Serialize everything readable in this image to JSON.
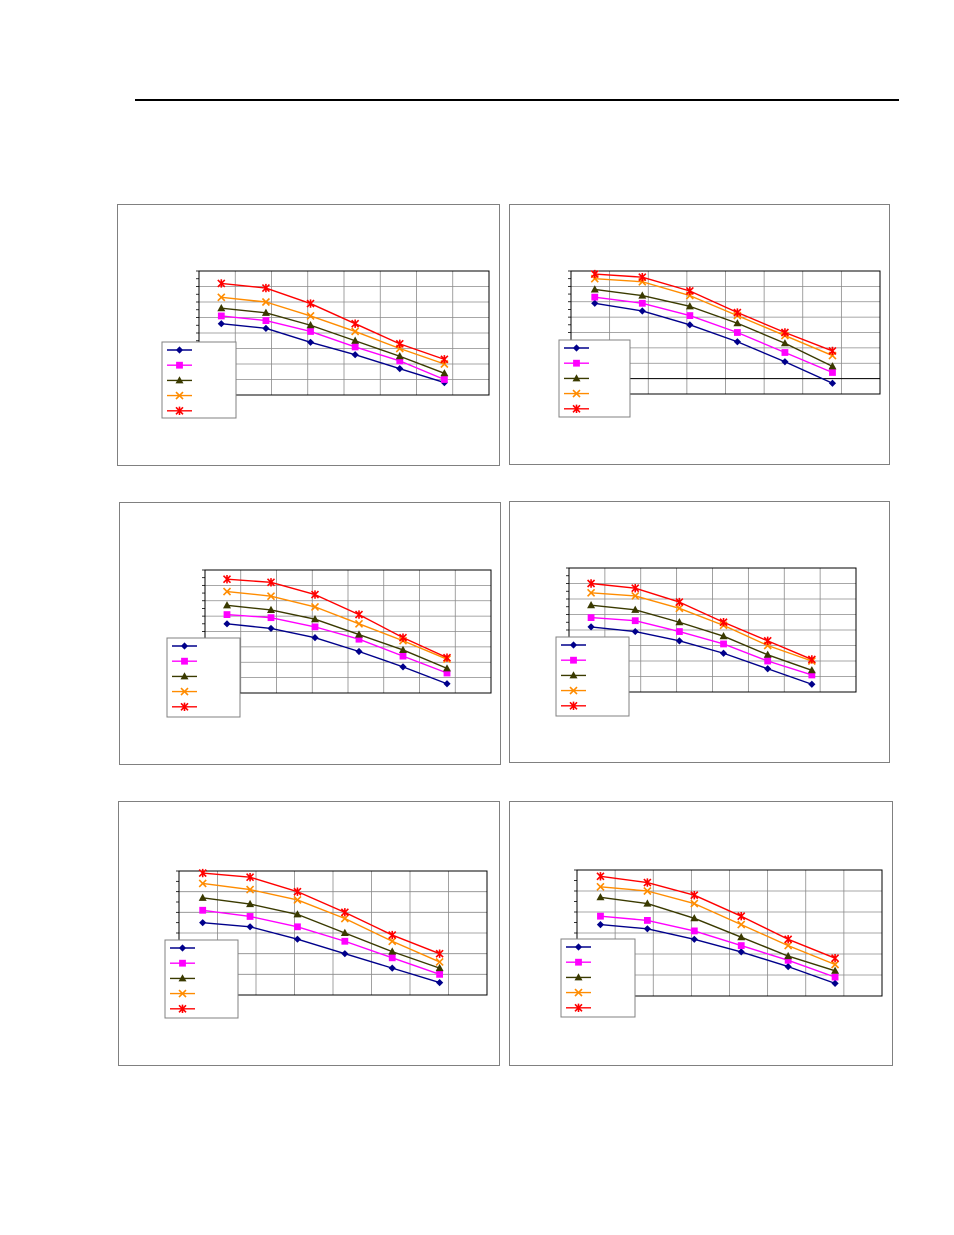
{
  "page": {},
  "series_style": [
    {
      "color": "#00008B",
      "marker": "diamond"
    },
    {
      "color": "#FF00FF",
      "marker": "square"
    },
    {
      "color": "#3A3A00",
      "marker": "triangle"
    },
    {
      "color": "#FF8C00",
      "marker": "x"
    },
    {
      "color": "#FF0000",
      "marker": "star"
    }
  ],
  "chart_data": [
    {
      "type": "line",
      "grid": true,
      "legend": "bottom-left",
      "x": [
        1,
        2,
        3,
        4,
        5,
        6
      ],
      "xlim": [
        0.5,
        7.0
      ],
      "ylim": [
        0,
        8
      ],
      "series": [
        {
          "values": [
            4.6,
            4.3,
            3.4,
            2.6,
            1.7,
            0.8
          ]
        },
        {
          "values": [
            5.1,
            4.8,
            4.1,
            3.1,
            2.2,
            1.0
          ]
        },
        {
          "values": [
            5.6,
            5.3,
            4.5,
            3.5,
            2.5,
            1.4
          ]
        },
        {
          "values": [
            6.3,
            6.0,
            5.1,
            4.1,
            3.0,
            2.0
          ]
        },
        {
          "values": [
            7.2,
            6.9,
            5.9,
            4.6,
            3.3,
            2.3
          ]
        }
      ]
    },
    {
      "type": "line",
      "grid": true,
      "legend": "bottom-left",
      "x": [
        1,
        2,
        3,
        4,
        5,
        6
      ],
      "xlim": [
        0.5,
        7.0
      ],
      "ylim": [
        -1,
        7
      ],
      "series": [
        {
          "values": [
            4.9,
            4.4,
            3.5,
            2.4,
            1.1,
            -0.3
          ]
        },
        {
          "values": [
            5.3,
            4.9,
            4.1,
            3.0,
            1.7,
            0.4
          ]
        },
        {
          "values": [
            5.8,
            5.4,
            4.7,
            3.6,
            2.3,
            0.8
          ]
        },
        {
          "values": [
            6.5,
            6.3,
            5.4,
            4.1,
            2.8,
            1.5
          ]
        },
        {
          "values": [
            6.8,
            6.6,
            5.7,
            4.3,
            3.0,
            1.8
          ]
        }
      ]
    },
    {
      "type": "line",
      "grid": true,
      "legend": "bottom-left",
      "x": [
        1,
        2,
        3,
        4,
        5,
        6
      ],
      "xlim": [
        0.5,
        7.0
      ],
      "ylim": [
        0,
        8
      ],
      "series": [
        {
          "values": [
            4.5,
            4.2,
            3.6,
            2.7,
            1.7,
            0.6
          ]
        },
        {
          "values": [
            5.1,
            4.9,
            4.3,
            3.5,
            2.4,
            1.3
          ]
        },
        {
          "values": [
            5.7,
            5.4,
            4.8,
            3.8,
            2.8,
            1.6
          ]
        },
        {
          "values": [
            6.6,
            6.3,
            5.6,
            4.5,
            3.4,
            2.2
          ]
        },
        {
          "values": [
            7.4,
            7.2,
            6.4,
            5.1,
            3.6,
            2.3
          ]
        }
      ]
    },
    {
      "type": "line",
      "grid": true,
      "legend": "bottom-left",
      "x": [
        1,
        2,
        3,
        4,
        5,
        6
      ],
      "xlim": [
        0.5,
        7.0
      ],
      "ylim": [
        0,
        8
      ],
      "series": [
        {
          "values": [
            4.2,
            3.9,
            3.3,
            2.5,
            1.5,
            0.5
          ]
        },
        {
          "values": [
            4.8,
            4.6,
            3.9,
            3.1,
            2.0,
            1.1
          ]
        },
        {
          "values": [
            5.6,
            5.3,
            4.5,
            3.6,
            2.4,
            1.4
          ]
        },
        {
          "values": [
            6.4,
            6.2,
            5.4,
            4.3,
            3.0,
            2.0
          ]
        },
        {
          "values": [
            7.0,
            6.7,
            5.8,
            4.5,
            3.3,
            2.1
          ]
        }
      ]
    },
    {
      "type": "line",
      "grid": true,
      "legend": "bottom-left",
      "x": [
        1,
        2,
        3,
        4,
        5,
        6
      ],
      "xlim": [
        0.5,
        7.0
      ],
      "ylim": [
        0,
        6
      ],
      "series": [
        {
          "values": [
            3.5,
            3.3,
            2.7,
            2.0,
            1.3,
            0.6
          ]
        },
        {
          "values": [
            4.1,
            3.8,
            3.3,
            2.6,
            1.8,
            1.0
          ]
        },
        {
          "values": [
            4.7,
            4.4,
            3.9,
            3.0,
            2.1,
            1.3
          ]
        },
        {
          "values": [
            5.4,
            5.1,
            4.6,
            3.7,
            2.6,
            1.6
          ]
        },
        {
          "values": [
            5.9,
            5.7,
            5.0,
            4.0,
            2.9,
            2.0
          ]
        }
      ]
    },
    {
      "type": "line",
      "grid": true,
      "legend": "bottom-left",
      "x": [
        1,
        2,
        3,
        4,
        5,
        6
      ],
      "xlim": [
        0.5,
        7.0
      ],
      "ylim": [
        0,
        6
      ],
      "series": [
        {
          "values": [
            3.4,
            3.2,
            2.7,
            2.1,
            1.4,
            0.6
          ]
        },
        {
          "values": [
            3.8,
            3.6,
            3.1,
            2.4,
            1.7,
            0.9
          ]
        },
        {
          "values": [
            4.7,
            4.4,
            3.7,
            2.8,
            1.9,
            1.2
          ]
        },
        {
          "values": [
            5.2,
            5.0,
            4.4,
            3.4,
            2.4,
            1.5
          ]
        },
        {
          "values": [
            5.7,
            5.4,
            4.8,
            3.8,
            2.7,
            1.8
          ]
        }
      ]
    }
  ]
}
